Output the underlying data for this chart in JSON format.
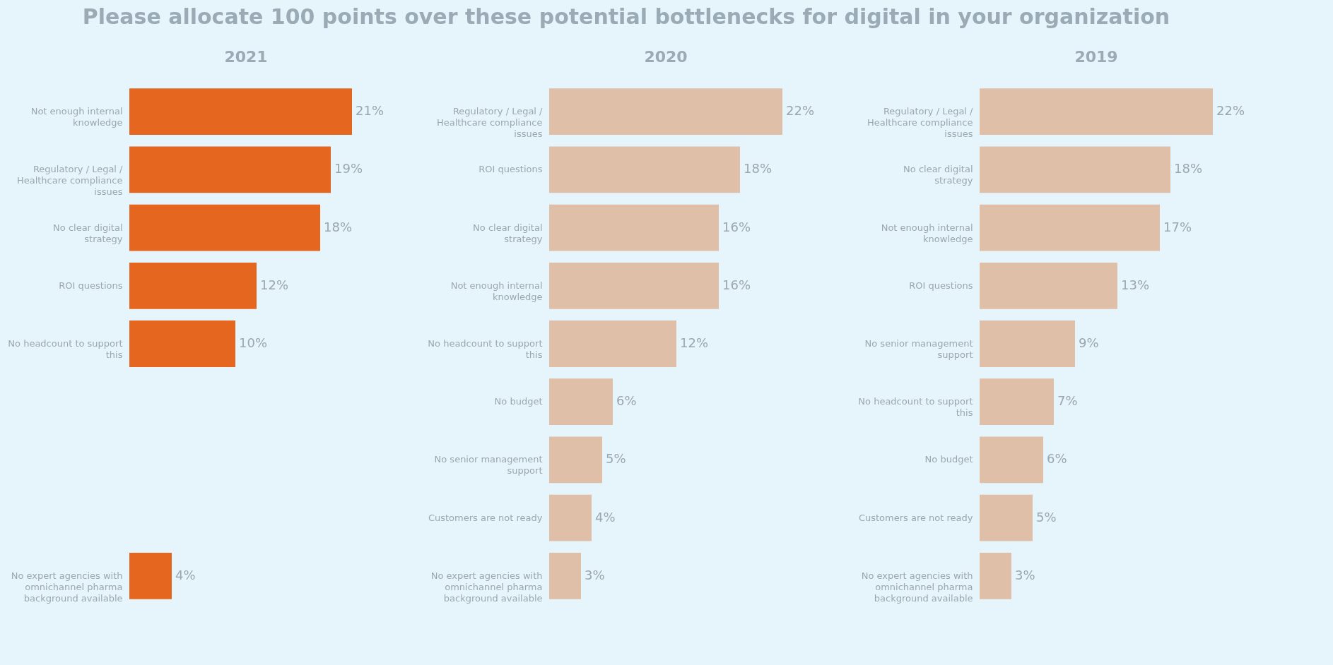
{
  "chart_data": [
    {
      "type": "bar",
      "orientation": "horizontal",
      "title": "2021",
      "annotations": [
        "Please allocate 100 points over these potential bottlenecks for digital in your organization"
      ],
      "categories": [
        "Not enough internal knowledge",
        "Regulatory / Legal / Healthcare compliance issues",
        "No clear digital strategy",
        "ROI questions",
        "No headcount to support this",
        null,
        null,
        null,
        "No expert agencies with omnichannel pharma background available"
      ],
      "series": [
        {
          "color": "#e5661e",
          "values": [
            21,
            19,
            18,
            12,
            10,
            null,
            null,
            null,
            4
          ],
          "value_labels": [
            "21%",
            "19%",
            "18%",
            "12%",
            "10%",
            null,
            null,
            null,
            "4%"
          ]
        }
      ]
    },
    {
      "type": "bar",
      "orientation": "horizontal",
      "title": "2020",
      "categories": [
        "Regulatory / Legal / Healthcare compliance issues",
        "ROI questions",
        "No clear digital strategy",
        "Not enough internal knowledge",
        "No headcount to support this",
        "No budget",
        "No senior management support",
        "Customers are not ready",
        "No expert agencies with omnichannel pharma background available"
      ],
      "series": [
        {
          "color": "#dfbfa7",
          "values": [
            22,
            18,
            16,
            16,
            12,
            6,
            5,
            4,
            3
          ],
          "value_labels": [
            "22%",
            "18%",
            "16%",
            "16%",
            "12%",
            "6%",
            "5%",
            "4%",
            "3%"
          ]
        }
      ]
    },
    {
      "type": "bar",
      "orientation": "horizontal",
      "title": "2019",
      "categories": [
        "Regulatory / Legal / Healthcare compliance issues",
        "No clear digital strategy",
        "Not enough internal knowledge",
        "ROI questions",
        "No senior management support",
        "No headcount to support this",
        "No budget",
        "Customers are not ready",
        "No expert agencies with omnichannel pharma background available"
      ],
      "series": [
        {
          "color": "#dfbfa7",
          "values": [
            22,
            18,
            17,
            13,
            9,
            7,
            6,
            5,
            3
          ],
          "value_labels": [
            "22%",
            "18%",
            "17%",
            "13%",
            "9%",
            "7%",
            "6%",
            "5%",
            "3%"
          ]
        }
      ]
    }
  ]
}
